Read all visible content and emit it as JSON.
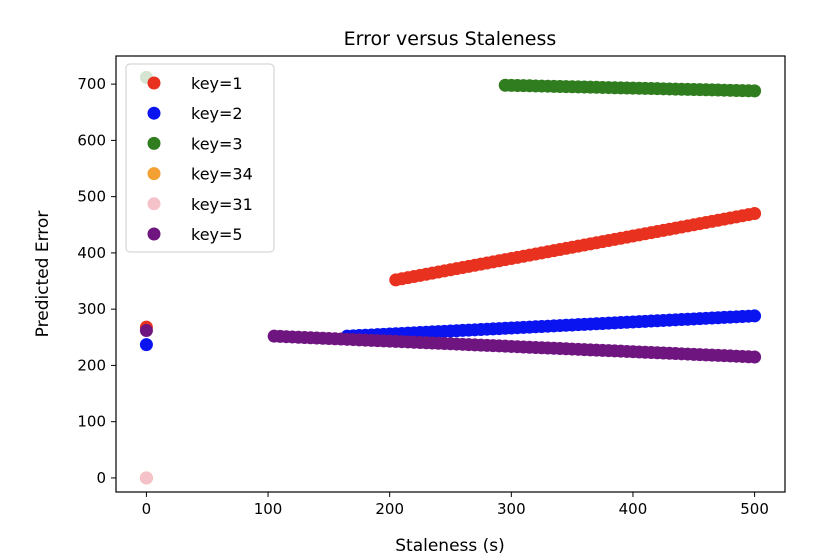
{
  "chart_data": {
    "type": "scatter",
    "title": "Error versus Staleness",
    "xlabel": "Staleness (s)",
    "ylabel": "Predicted Error",
    "xlim": [
      -25,
      525
    ],
    "ylim": [
      -25,
      750
    ],
    "xticks": [
      0,
      100,
      200,
      300,
      400,
      500
    ],
    "yticks": [
      0,
      100,
      200,
      300,
      400,
      500,
      600,
      700
    ],
    "grid": false,
    "legend_position": "top-left",
    "series": [
      {
        "name": "key=1",
        "color": "#e8321f",
        "points": [
          [
            0,
            268
          ],
          {
            "from": [
              205,
              352
            ],
            "to": [
              500,
              470
            ],
            "step": 5
          }
        ]
      },
      {
        "name": "key=2",
        "color": "#0a14f0",
        "points": [
          [
            0,
            237
          ],
          {
            "from": [
              165,
              252
            ],
            "to": [
              500,
              288
            ],
            "step": 5
          }
        ]
      },
      {
        "name": "key=3",
        "color": "#2f7d1e",
        "points": [
          [
            0,
            712
          ],
          {
            "from": [
              295,
              698
            ],
            "to": [
              500,
              688
            ],
            "step": 5
          }
        ]
      },
      {
        "name": "key=34",
        "color": "#f4a033",
        "points": [
          [
            0,
            0
          ]
        ]
      },
      {
        "name": "key=31",
        "color": "#f4c2c8",
        "points": [
          [
            0,
            0
          ]
        ]
      },
      {
        "name": "key=5",
        "color": "#6f1580",
        "points": [
          [
            0,
            262
          ],
          {
            "from": [
              105,
              252
            ],
            "to": [
              500,
              215
            ],
            "step": 5
          }
        ]
      }
    ]
  }
}
